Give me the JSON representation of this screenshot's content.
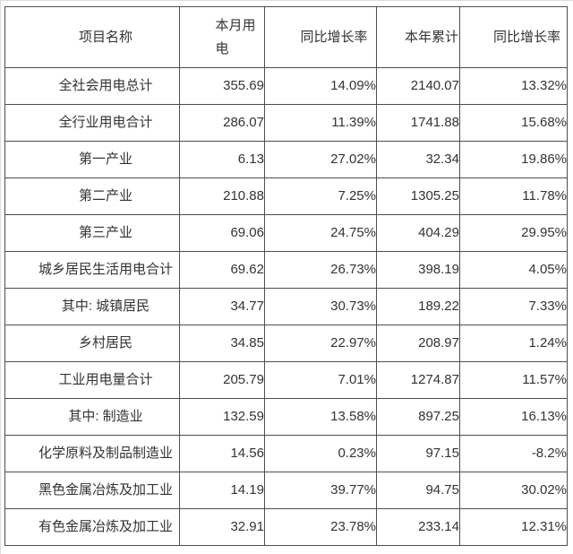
{
  "page": {
    "background": "#ffffff",
    "frame_border_color": "#dcdcdc",
    "table_border_color": "#4d4d4d",
    "text_color": "#333333"
  },
  "table": {
    "columns": [
      {
        "id": "name",
        "label": "项目名称"
      },
      {
        "id": "month_value",
        "label": "本月用电",
        "lines": [
          "本月用",
          "电"
        ]
      },
      {
        "id": "month_yoy",
        "label": "同比增长率"
      },
      {
        "id": "ytd_value",
        "label": "本年累计"
      },
      {
        "id": "ytd_yoy",
        "label": "同比增长率"
      }
    ],
    "rows": [
      {
        "name": "全社会用电总计",
        "month_value": "355.69",
        "month_yoy": "14.09%",
        "ytd_value": "2140.07",
        "ytd_yoy": "13.32%"
      },
      {
        "name": "全行业用电合计",
        "month_value": "286.07",
        "month_yoy": "11.39%",
        "ytd_value": "1741.88",
        "ytd_yoy": "15.68%"
      },
      {
        "name": "第一产业",
        "month_value": "6.13",
        "month_yoy": "27.02%",
        "ytd_value": "32.34",
        "ytd_yoy": "19.86%"
      },
      {
        "name": "第二产业",
        "month_value": "210.88",
        "month_yoy": "7.25%",
        "ytd_value": "1305.25",
        "ytd_yoy": "11.78%"
      },
      {
        "name": "第三产业",
        "month_value": "69.06",
        "month_yoy": "24.75%",
        "ytd_value": "404.29",
        "ytd_yoy": "29.95%"
      },
      {
        "name": "城乡居民生活用电合计",
        "month_value": "69.62",
        "month_yoy": "26.73%",
        "ytd_value": "398.19",
        "ytd_yoy": "4.05%"
      },
      {
        "name": "其中: 城镇居民",
        "month_value": "34.77",
        "month_yoy": "30.73%",
        "ytd_value": "189.22",
        "ytd_yoy": "7.33%"
      },
      {
        "name": "乡村居民",
        "month_value": "34.85",
        "month_yoy": "22.97%",
        "ytd_value": "208.97",
        "ytd_yoy": "1.24%"
      },
      {
        "name": "工业用电量合计",
        "month_value": "205.79",
        "month_yoy": "7.01%",
        "ytd_value": "1274.87",
        "ytd_yoy": "11.57%"
      },
      {
        "name": "其中: 制造业",
        "month_value": "132.59",
        "month_yoy": "13.58%",
        "ytd_value": "897.25",
        "ytd_yoy": "16.13%"
      },
      {
        "name": "化学原料及制品制造业",
        "month_value": "14.56",
        "month_yoy": "0.23%",
        "ytd_value": "97.15",
        "ytd_yoy": "-8.2%"
      },
      {
        "name": "黑色金属冶炼及加工业",
        "month_value": "14.19",
        "month_yoy": "39.77%",
        "ytd_value": "94.75",
        "ytd_yoy": "30.02%"
      },
      {
        "name": "有色金属冶炼及加工业",
        "month_value": "32.91",
        "month_yoy": "23.78%",
        "ytd_value": "233.14",
        "ytd_yoy": "12.31%"
      }
    ]
  }
}
